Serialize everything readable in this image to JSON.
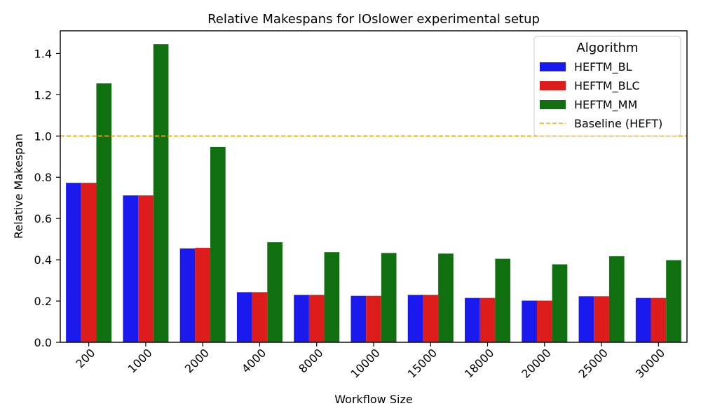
{
  "chart_data": {
    "type": "bar",
    "title": "Relative Makespans for IOslower experimental setup",
    "xlabel": "Workflow Size",
    "ylabel": "Relative Makespan",
    "categories": [
      "200",
      "1000",
      "2000",
      "4000",
      "8000",
      "10000",
      "15000",
      "18000",
      "20000",
      "25000",
      "30000"
    ],
    "series": [
      {
        "name": "HEFTM_BL",
        "color": "#1a1aee",
        "values": [
          0.773,
          0.712,
          0.455,
          0.243,
          0.23,
          0.225,
          0.23,
          0.215,
          0.202,
          0.223,
          0.215
        ]
      },
      {
        "name": "HEFTM_BLC",
        "color": "#dd1c1c",
        "values": [
          0.773,
          0.712,
          0.458,
          0.243,
          0.23,
          0.225,
          0.23,
          0.215,
          0.202,
          0.223,
          0.215
        ]
      },
      {
        "name": "HEFTM_MM",
        "color": "#107010",
        "values": [
          1.255,
          1.445,
          0.947,
          0.485,
          0.437,
          0.433,
          0.43,
          0.405,
          0.378,
          0.417,
          0.398
        ]
      }
    ],
    "baseline": {
      "name": "Baseline (HEFT)",
      "value": 1.0,
      "color": "#ffa500",
      "style": "dashed"
    },
    "ylim": [
      0,
      1.51
    ],
    "yticks": [
      0.0,
      0.2,
      0.4,
      0.6,
      0.8,
      1.0,
      1.2,
      1.4
    ],
    "ytick_labels": [
      "0.0",
      "0.2",
      "0.4",
      "0.6",
      "0.8",
      "1.0",
      "1.2",
      "1.4"
    ],
    "legend": {
      "title": "Algorithm",
      "placement": "top-right"
    },
    "grid": false
  }
}
